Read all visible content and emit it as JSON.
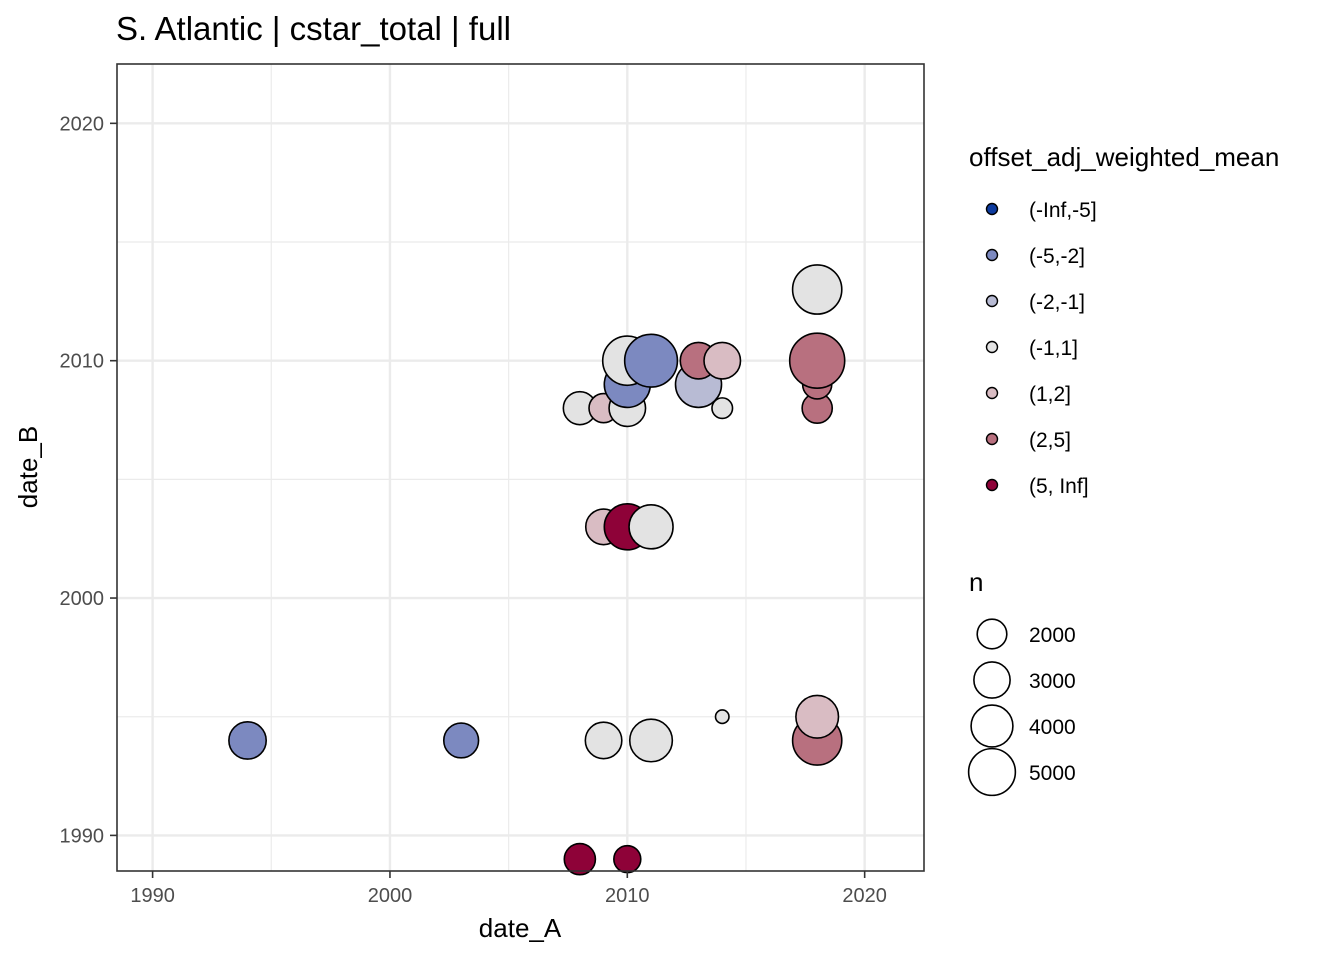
{
  "chart_data": {
    "type": "scatter",
    "title": "S. Atlantic | cstar_total | full",
    "xlabel": "date_A",
    "ylabel": "date_B",
    "xlim": [
      1988.5,
      2022.5
    ],
    "ylim": [
      1988.5,
      2022.5
    ],
    "x_ticks": [
      1990,
      2000,
      2010,
      2020
    ],
    "y_ticks": [
      1990,
      2000,
      2010,
      2020
    ],
    "x_minor": [
      1995,
      2005,
      2015
    ],
    "y_minor": [
      1995,
      2005,
      2015
    ],
    "grid": true,
    "legend_position": "right",
    "colors": {
      "(-Inf,-5]": "#0d3b9f",
      "(-5,-2]": "#7c89c0",
      "(-2,-1]": "#b8bbd4",
      "(-1,1]": "#e3e3e3",
      "(1,2]": "#d9bcc3",
      "(2,5]": "#b8707f",
      "(5, Inf]": "#8e0238"
    },
    "color_legend": {
      "title": "offset_adj_weighted_mean",
      "entries": [
        "(-Inf,-5]",
        "(-5,-2]",
        "(-2,-1]",
        "(-1,1]",
        "(1,2]",
        "(2,5]",
        "(5, Inf]"
      ]
    },
    "size_legend": {
      "title": "n",
      "entries": [
        {
          "label": "2000",
          "n": 2000
        },
        {
          "label": "3000",
          "n": 3000
        },
        {
          "label": "4000",
          "n": 4000
        },
        {
          "label": "5000",
          "n": 5000
        }
      ]
    },
    "points": [
      {
        "x": 1994,
        "y": 1994,
        "n": 2300,
        "category": "(-5,-2]"
      },
      {
        "x": 2003,
        "y": 1994,
        "n": 2000,
        "category": "(-5,-2]"
      },
      {
        "x": 2008,
        "y": 1989,
        "n": 1600,
        "category": "(5, Inf]"
      },
      {
        "x": 2010,
        "y": 1989,
        "n": 1200,
        "category": "(5, Inf]"
      },
      {
        "x": 2009,
        "y": 1994,
        "n": 2200,
        "category": "(-1,1]"
      },
      {
        "x": 2011,
        "y": 1994,
        "n": 3000,
        "category": "(-1,1]"
      },
      {
        "x": 2014,
        "y": 1995,
        "n": 300,
        "category": "(-1,1]"
      },
      {
        "x": 2018,
        "y": 1995,
        "n": 3000,
        "category": "(1,2]"
      },
      {
        "x": 2018,
        "y": 1994,
        "n": 4000,
        "category": "(2,5]"
      },
      {
        "x": 2009,
        "y": 2003,
        "n": 2100,
        "category": "(1,2]"
      },
      {
        "x": 2010,
        "y": 2003,
        "n": 3500,
        "category": "(5, Inf]"
      },
      {
        "x": 2011,
        "y": 2003,
        "n": 3200,
        "category": "(-1,1]"
      },
      {
        "x": 2008,
        "y": 2008,
        "n": 1800,
        "category": "(-1,1]"
      },
      {
        "x": 2009,
        "y": 2008,
        "n": 1400,
        "category": "(1,2]"
      },
      {
        "x": 2010,
        "y": 2008,
        "n": 2200,
        "category": "(-1,1]"
      },
      {
        "x": 2014,
        "y": 2008,
        "n": 700,
        "category": "(-1,1]"
      },
      {
        "x": 2018,
        "y": 2008,
        "n": 1500,
        "category": "(2,5]"
      },
      {
        "x": 2010,
        "y": 2009,
        "n": 3500,
        "category": "(-5,-2]"
      },
      {
        "x": 2013,
        "y": 2009,
        "n": 3500,
        "category": "(-2,-1]"
      },
      {
        "x": 2018,
        "y": 2009,
        "n": 1400,
        "category": "(2,5]"
      },
      {
        "x": 2010,
        "y": 2010,
        "n": 4000,
        "category": "(-1,1]"
      },
      {
        "x": 2011,
        "y": 2010,
        "n": 4600,
        "category": "(-5,-2]"
      },
      {
        "x": 2013,
        "y": 2010,
        "n": 2200,
        "category": "(2,5]"
      },
      {
        "x": 2014,
        "y": 2010,
        "n": 2200,
        "category": "(1,2]"
      },
      {
        "x": 2018,
        "y": 2010,
        "n": 5000,
        "category": "(2,5]"
      },
      {
        "x": 2018,
        "y": 2013,
        "n": 4000,
        "category": "(-1,1]"
      }
    ]
  }
}
